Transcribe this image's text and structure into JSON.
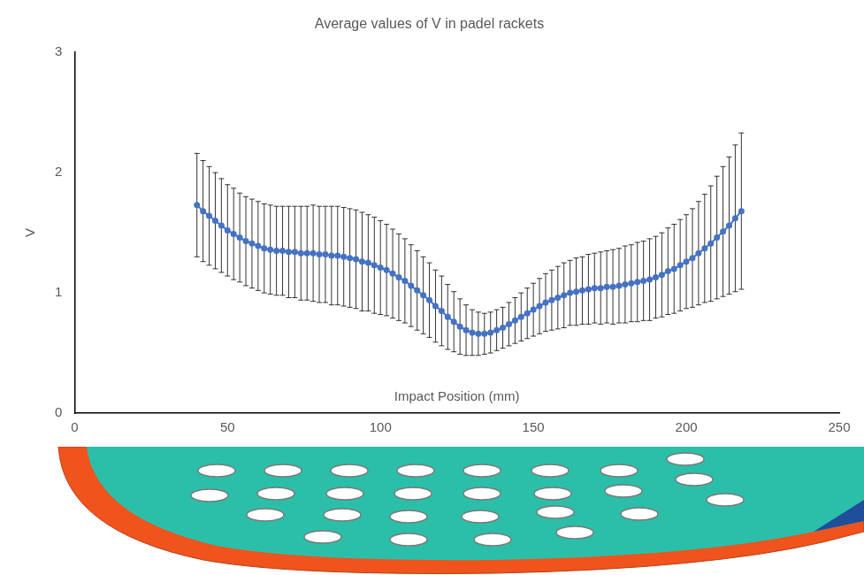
{
  "chart_data": {
    "type": "line",
    "title": "Average values of V in padel rackets",
    "x_label": "Impact Position (mm)",
    "y_label": "V",
    "color": "#4472c4",
    "marker": "circle",
    "grid": false,
    "xlim": [
      0,
      250
    ],
    "xticks": [
      0,
      50,
      100,
      150,
      200,
      250
    ],
    "ylim": [
      0,
      3
    ],
    "yticks": [
      0,
      1,
      2,
      3
    ],
    "x": [
      40,
      42,
      44,
      46,
      48,
      50,
      52,
      54,
      56,
      58,
      60,
      62,
      64,
      66,
      68,
      70,
      72,
      74,
      76,
      78,
      80,
      82,
      84,
      86,
      88,
      90,
      92,
      94,
      96,
      98,
      100,
      102,
      104,
      106,
      108,
      110,
      112,
      114,
      116,
      118,
      120,
      122,
      124,
      126,
      128,
      130,
      132,
      134,
      136,
      138,
      140,
      142,
      144,
      146,
      148,
      150,
      152,
      154,
      156,
      158,
      160,
      162,
      164,
      166,
      168,
      170,
      172,
      174,
      176,
      178,
      180,
      182,
      184,
      186,
      188,
      190,
      192,
      194,
      196,
      198,
      200,
      202,
      204,
      206,
      208,
      210,
      212,
      214,
      216,
      218
    ],
    "values": [
      1.73,
      1.68,
      1.64,
      1.6,
      1.56,
      1.52,
      1.49,
      1.46,
      1.43,
      1.41,
      1.39,
      1.37,
      1.36,
      1.35,
      1.35,
      1.34,
      1.34,
      1.33,
      1.33,
      1.33,
      1.32,
      1.32,
      1.31,
      1.31,
      1.3,
      1.29,
      1.28,
      1.26,
      1.25,
      1.23,
      1.21,
      1.19,
      1.16,
      1.13,
      1.1,
      1.06,
      1.02,
      0.98,
      0.94,
      0.89,
      0.85,
      0.8,
      0.76,
      0.72,
      0.69,
      0.67,
      0.66,
      0.66,
      0.67,
      0.69,
      0.71,
      0.74,
      0.77,
      0.8,
      0.83,
      0.86,
      0.89,
      0.92,
      0.94,
      0.96,
      0.98,
      1.0,
      1.01,
      1.02,
      1.03,
      1.04,
      1.04,
      1.05,
      1.05,
      1.06,
      1.07,
      1.08,
      1.09,
      1.1,
      1.11,
      1.13,
      1.15,
      1.18,
      1.2,
      1.23,
      1.26,
      1.29,
      1.33,
      1.37,
      1.41,
      1.46,
      1.51,
      1.56,
      1.62,
      1.68
    ],
    "errors": [
      0.43,
      0.42,
      0.41,
      0.4,
      0.39,
      0.38,
      0.38,
      0.37,
      0.37,
      0.37,
      0.37,
      0.37,
      0.37,
      0.37,
      0.37,
      0.38,
      0.38,
      0.39,
      0.39,
      0.4,
      0.4,
      0.4,
      0.41,
      0.41,
      0.41,
      0.41,
      0.41,
      0.41,
      0.4,
      0.4,
      0.39,
      0.38,
      0.37,
      0.36,
      0.35,
      0.34,
      0.33,
      0.32,
      0.31,
      0.3,
      0.29,
      0.27,
      0.25,
      0.23,
      0.21,
      0.19,
      0.18,
      0.17,
      0.17,
      0.17,
      0.17,
      0.18,
      0.19,
      0.2,
      0.21,
      0.22,
      0.23,
      0.24,
      0.25,
      0.26,
      0.27,
      0.27,
      0.28,
      0.28,
      0.29,
      0.29,
      0.3,
      0.3,
      0.31,
      0.31,
      0.32,
      0.32,
      0.33,
      0.33,
      0.34,
      0.34,
      0.35,
      0.36,
      0.37,
      0.38,
      0.39,
      0.41,
      0.43,
      0.45,
      0.48,
      0.51,
      0.54,
      0.57,
      0.61,
      0.65
    ]
  }
}
